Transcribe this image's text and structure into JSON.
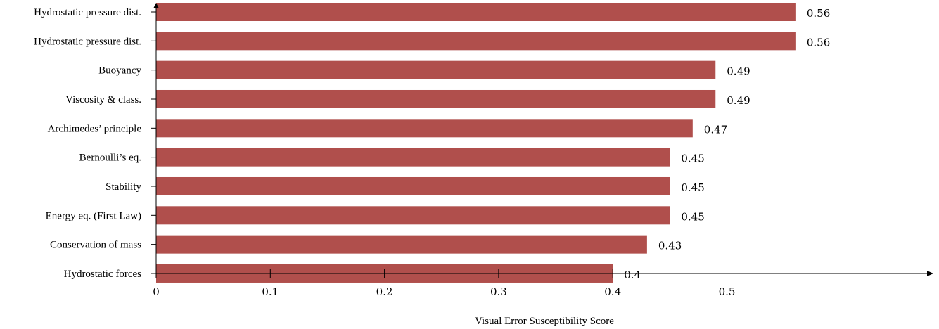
{
  "chart_data": {
    "type": "bar",
    "orientation": "horizontal",
    "categories": [
      "Hydrostatic pressure dist.",
      "Hydrostatic pressure dist.",
      "Buoyancy",
      "Viscosity & class.",
      "Archimedes’ principle",
      "Bernoulli’s eq.",
      "Stability",
      "Energy eq. (First Law)",
      "Conservation of mass",
      "Hydrostatic forces"
    ],
    "values": [
      0.56,
      0.56,
      0.49,
      0.49,
      0.47,
      0.45,
      0.45,
      0.45,
      0.43,
      0.4
    ],
    "value_labels": [
      "0.56",
      "0.56",
      "0.49",
      "0.49",
      "0.47",
      "0.45",
      "0.45",
      "0.45",
      "0.43",
      "0.4"
    ],
    "xticks": [
      0,
      0.1,
      0.2,
      0.3,
      0.4,
      0.5
    ],
    "xtick_labels": [
      "0",
      "0.1",
      "0.2",
      "0.3",
      "0.4",
      "0.5"
    ],
    "xlim": [
      0,
      0.68
    ],
    "xlabel": "Visual Error Susceptibility Score",
    "ylabel": "",
    "title": "",
    "bar_color": "#b04f4c",
    "grid": false
  }
}
